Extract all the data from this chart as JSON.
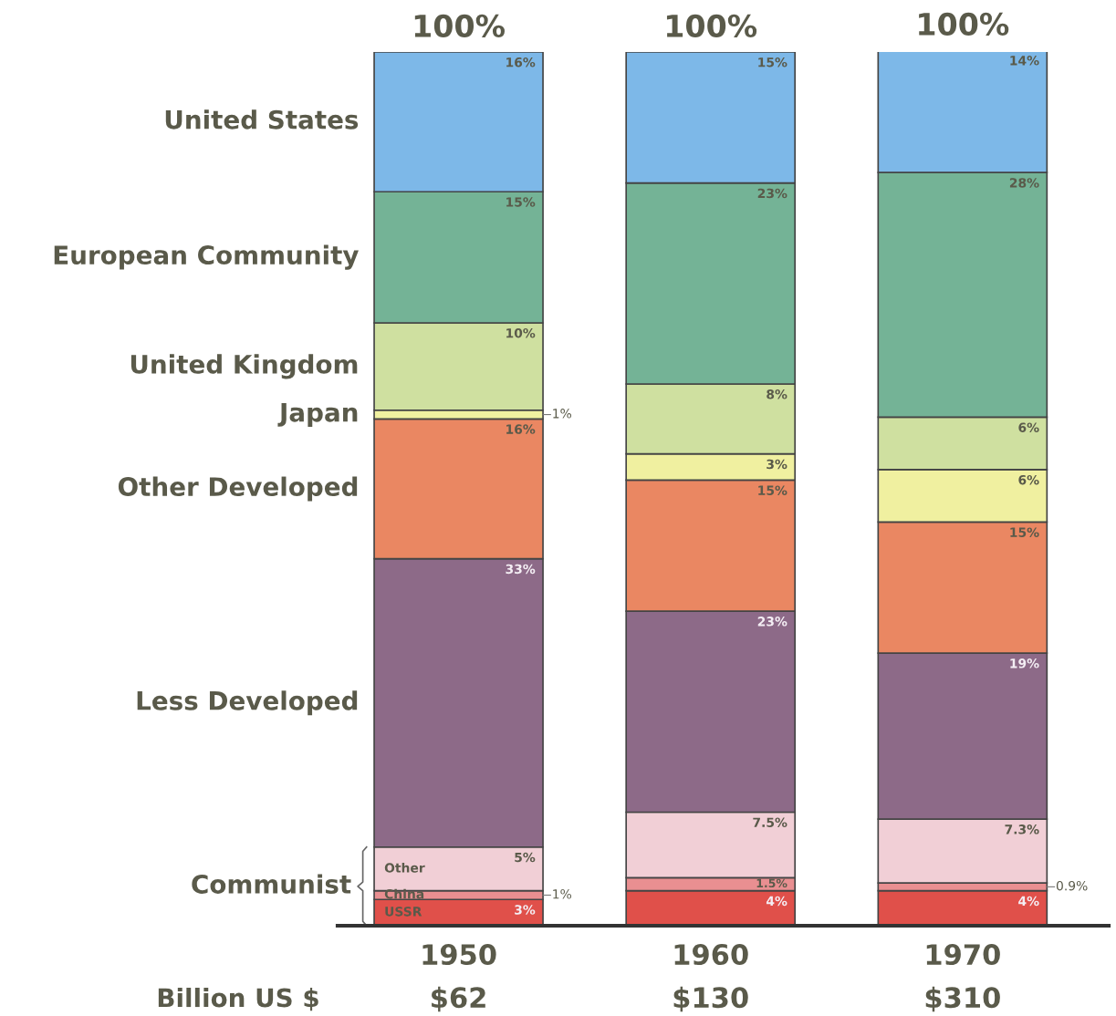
{
  "chart_data": {
    "type": "bar",
    "stacked": true,
    "categories": [
      "1950",
      "1960",
      "1970"
    ],
    "ylim": [
      0,
      100
    ],
    "tick_labels": "x",
    "grid": false,
    "legend": false,
    "series": [
      {
        "name": "USSR",
        "color": "#e0504a",
        "values": [
          3,
          4,
          4
        ],
        "value_labels": [
          "3%",
          "4%",
          "4%"
        ]
      },
      {
        "name": "China",
        "color": "#e98f91",
        "values": [
          1,
          1.5,
          0.9
        ],
        "value_labels": [
          "1%",
          "1.5%",
          "0.9%"
        ]
      },
      {
        "name": "Other",
        "color": "#f1cfd6",
        "values": [
          5,
          7.5,
          7.3
        ],
        "value_labels": [
          "5%",
          "7.5%",
          "7.3%"
        ]
      },
      {
        "name": "Less Developed",
        "color": "#8d6a88",
        "values": [
          33,
          23,
          19
        ],
        "value_labels": [
          "33%",
          "23%",
          "19%"
        ]
      },
      {
        "name": "Other Developed",
        "color": "#ea8762",
        "values": [
          16,
          15,
          15
        ],
        "value_labels": [
          "16%",
          "15%",
          "15%"
        ]
      },
      {
        "name": "Japan",
        "color": "#f0f0a0",
        "values": [
          1,
          3,
          6
        ],
        "value_labels": [
          "1%",
          "3%",
          "6%"
        ]
      },
      {
        "name": "United Kingdom",
        "color": "#cfe0a0",
        "values": [
          10,
          8,
          6
        ],
        "value_labels": [
          "10%",
          "8%",
          "6%"
        ]
      },
      {
        "name": "European Community",
        "color": "#74b396",
        "values": [
          15,
          23,
          28
        ],
        "value_labels": [
          "15%",
          "23%",
          "28%"
        ]
      },
      {
        "name": "United States",
        "color": "#7db8e8",
        "values": [
          16,
          15,
          14
        ],
        "value_labels": [
          "16%",
          "15%",
          "14%"
        ]
      }
    ],
    "totals": [
      "100%",
      "100%",
      "100%"
    ],
    "annotations": [
      "Communist",
      "Billion US $",
      "$62",
      "$130",
      "$310"
    ]
  }
}
